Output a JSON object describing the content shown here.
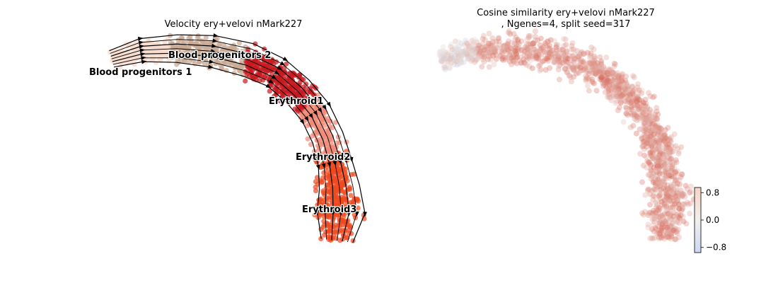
{
  "chart_data": [
    {
      "type": "scatter",
      "title": "Velocity ery+velovi nMark227",
      "clusters": [
        {
          "name": "Blood progenitors 1",
          "color": "#f6dccf"
        },
        {
          "name": "Blood progenitors 2",
          "color": "#c9a994"
        },
        {
          "name": "Erythroid1",
          "color": "#c7191f"
        },
        {
          "name": "Erythroid2",
          "color": "#ef8a78"
        },
        {
          "name": "Erythroid3",
          "color": "#ee4a20"
        }
      ],
      "streamlines": true,
      "axes_visible": false
    },
    {
      "type": "scatter",
      "title_line1": "Cosine similarity ery+velovi nMark227",
      "title_line2": ", Ngenes=4, split seed=317",
      "colormap": "coolwarm",
      "colorbar": {
        "ticks": [
          0.8,
          0.0,
          -0.8
        ],
        "tick_labels": [
          "0.8",
          "0.0",
          "−0.8"
        ],
        "range": [
          -0.95,
          0.95
        ]
      },
      "axes_visible": false
    }
  ]
}
